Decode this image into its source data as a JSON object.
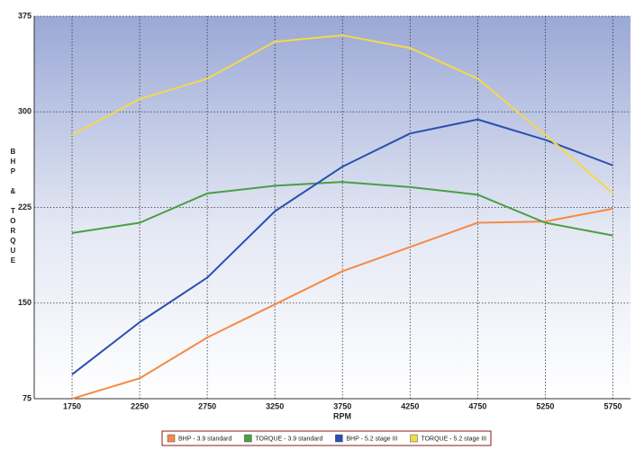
{
  "chart_data": {
    "type": "line",
    "y_label": "BHP & TORQUE",
    "x_label": "RPM",
    "x": [
      1750,
      2250,
      2750,
      3250,
      3750,
      4250,
      4750,
      5250,
      5750
    ],
    "xlim": [
      1470,
      5880
    ],
    "xticks": [
      1750,
      2250,
      2750,
      3250,
      3750,
      4250,
      4750,
      5250,
      5750
    ],
    "ylim": [
      75,
      375
    ],
    "yticks": [
      75,
      150,
      225,
      300,
      375
    ],
    "grid": true,
    "legend": "bottom",
    "series": [
      {
        "name": "BHP - 3.9 standard",
        "color": "#f58a45",
        "values": [
          75,
          91,
          123,
          149,
          175,
          194,
          213,
          214,
          224
        ]
      },
      {
        "name": "TORQUE - 3.9 standard",
        "color": "#4a9e45",
        "values": [
          205,
          213,
          236,
          242,
          245,
          241,
          235,
          213,
          203
        ]
      },
      {
        "name": "BHP - 5.2 stage III",
        "color": "#2a4fb0",
        "values": [
          94,
          135,
          170,
          222,
          257,
          283,
          294,
          278,
          258
        ]
      },
      {
        "name": "TORQUE - 5.2 stage III",
        "color": "#f5d84a",
        "values": [
          282,
          310,
          326,
          355,
          360,
          350,
          326,
          282,
          236
        ]
      }
    ]
  }
}
